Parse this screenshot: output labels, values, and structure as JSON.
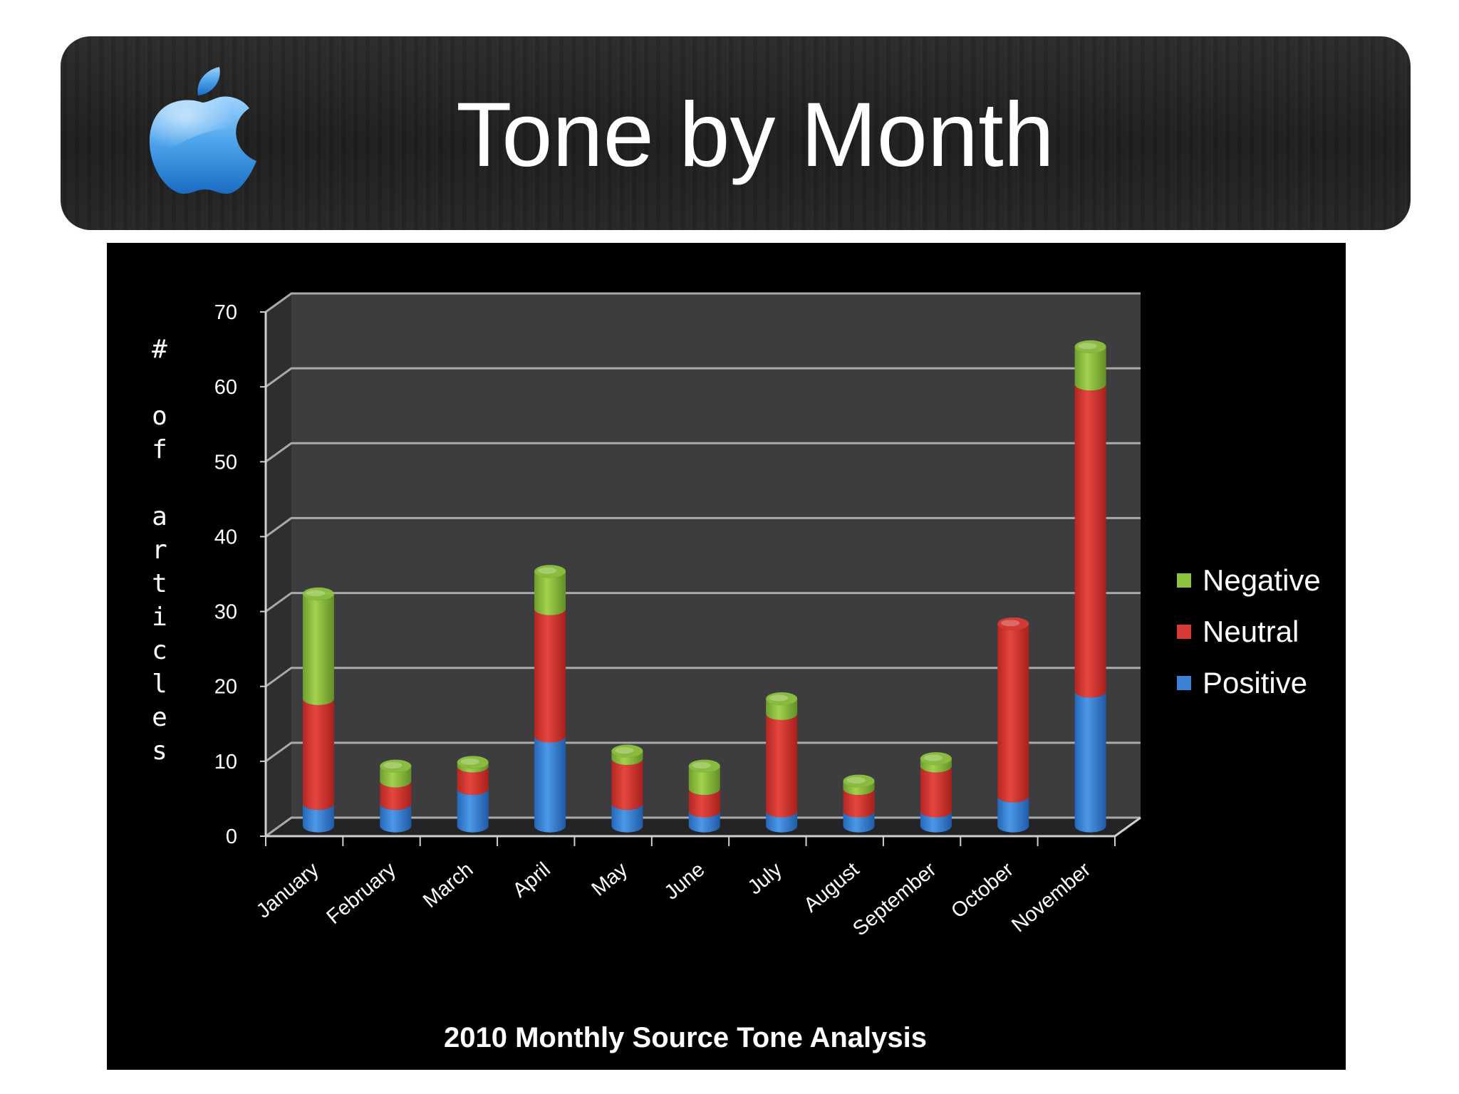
{
  "slide": {
    "title": "Tone by Month",
    "logo_icon": "apple-logo-icon"
  },
  "chart_data": {
    "type": "bar",
    "stacked": true,
    "three_d": true,
    "title": "2010 Monthly Source Tone Analysis",
    "xlabel": "",
    "ylabel": "# of articles",
    "ylim": [
      0,
      70
    ],
    "yticks": [
      0,
      10,
      20,
      30,
      40,
      50,
      60,
      70
    ],
    "grid": true,
    "legend_position": "right",
    "categories": [
      "January",
      "February",
      "March",
      "April",
      "May",
      "June",
      "July",
      "August",
      "September",
      "October",
      "November"
    ],
    "series": [
      {
        "name": "Positive",
        "color": "#3b82d6",
        "values": [
          3,
          3,
          5,
          12,
          3,
          2,
          2,
          2,
          2,
          4,
          18
        ]
      },
      {
        "name": "Neutral",
        "color": "#d93a35",
        "values": [
          14,
          3,
          3,
          17,
          6,
          3,
          13,
          3,
          6,
          23,
          41
        ]
      },
      {
        "name": "Negative",
        "color": "#8dc23e",
        "values": [
          14,
          2,
          0.5,
          5,
          1,
          3,
          2,
          1,
          1,
          0,
          5
        ]
      }
    ],
    "legend_order": [
      "Negative",
      "Neutral",
      "Positive"
    ]
  }
}
